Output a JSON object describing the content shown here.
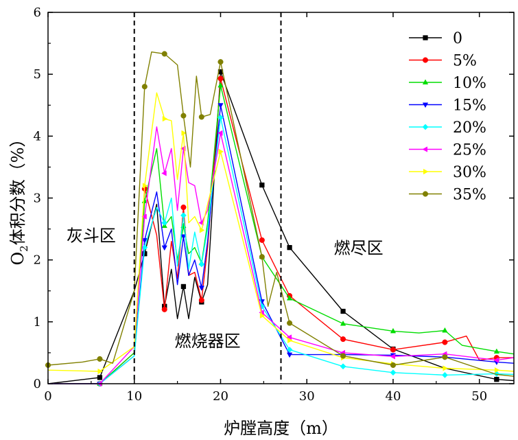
{
  "chart_data": {
    "type": "line",
    "title": "",
    "xlabel": "炉膛高度（m）",
    "ylabel_main": "O",
    "ylabel_sub": "2",
    "ylabel_rest": "体积分数（%）",
    "xlim": [
      0,
      54
    ],
    "ylim": [
      0,
      6
    ],
    "xticks": [
      0,
      10,
      20,
      30,
      40,
      50
    ],
    "yticks": [
      0,
      1,
      2,
      3,
      4,
      5,
      6
    ],
    "legend_position": "top-right",
    "vlines": [
      10,
      27
    ],
    "regions": [
      {
        "label": "灰斗区",
        "x": 5,
        "y": 2.3
      },
      {
        "label": "燃烧器区",
        "x": 18.5,
        "y": 0.6
      },
      {
        "label": "燃尽区",
        "x": 36,
        "y": 2.1
      }
    ],
    "series": [
      {
        "name": "0",
        "color": "#000000",
        "marker": "square",
        "x": [
          0,
          6,
          10,
          11.2,
          12.6,
          13.5,
          14.3,
          15,
          15.7,
          16.3,
          17,
          17.8,
          18.5,
          20,
          24.8,
          28,
          34.2,
          40,
          46,
          52,
          54
        ],
        "y": [
          0.0,
          0.1,
          1.5,
          2.1,
          2.9,
          1.25,
          1.85,
          1.05,
          1.57,
          1.05,
          1.72,
          1.32,
          1.6,
          5.04,
          3.21,
          2.2,
          1.17,
          0.56,
          0.25,
          0.07,
          0.05
        ],
        "markers": [
          1,
          3,
          5,
          8,
          11,
          13,
          14,
          15,
          16,
          17,
          19
        ]
      },
      {
        "name": "5%",
        "color": "#ff0000",
        "marker": "circle",
        "x": [
          0,
          6,
          10,
          11.2,
          12.6,
          13.5,
          14.3,
          15,
          15.7,
          16.3,
          17,
          17.8,
          18.5,
          20,
          24.8,
          28,
          34.2,
          40,
          46,
          48.5,
          50,
          52,
          54
        ],
        "y": [
          0.0,
          0.0,
          0.5,
          3.15,
          2.4,
          1.2,
          2.3,
          1.7,
          2.85,
          1.75,
          1.8,
          1.35,
          2.2,
          4.93,
          2.32,
          1.42,
          0.72,
          0.55,
          0.67,
          0.77,
          0.38,
          0.42,
          0.42
        ],
        "markers": [
          1,
          3,
          5,
          8,
          11,
          13,
          14,
          15,
          16,
          17,
          18,
          21
        ]
      },
      {
        "name": "10%",
        "color": "#00dd00",
        "marker": "triangle-up",
        "x": [
          0,
          6,
          10,
          11.2,
          12.6,
          13.5,
          14.3,
          15,
          15.7,
          16.3,
          17,
          17.8,
          18.5,
          20,
          24.8,
          28,
          34.2,
          40,
          43,
          46,
          48,
          52,
          54
        ],
        "y": [
          0.0,
          0.0,
          0.5,
          2.95,
          3.8,
          2.55,
          2.7,
          2.0,
          2.55,
          2.1,
          2.2,
          1.95,
          2.6,
          4.82,
          2.05,
          1.38,
          0.97,
          0.85,
          0.82,
          0.86,
          0.62,
          0.52,
          0.48
        ],
        "markers": [
          1,
          3,
          5,
          8,
          11,
          13,
          14,
          15,
          16,
          17,
          19,
          21
        ]
      },
      {
        "name": "15%",
        "color": "#0000ff",
        "marker": "triangle-down",
        "x": [
          0,
          6,
          10,
          11.2,
          12.6,
          13.5,
          14.3,
          15,
          15.7,
          16.3,
          17,
          17.8,
          18.5,
          20,
          24.8,
          28,
          34.2,
          40,
          46,
          52,
          54
        ],
        "y": [
          0.0,
          0.0,
          0.45,
          2.32,
          3.1,
          2.2,
          2.5,
          1.6,
          2.38,
          1.75,
          2.0,
          1.55,
          2.3,
          4.5,
          1.33,
          0.47,
          0.47,
          0.46,
          0.43,
          0.35,
          0.33
        ],
        "markers": [
          1,
          3,
          5,
          8,
          11,
          13,
          14,
          15,
          16,
          17,
          18,
          19
        ]
      },
      {
        "name": "20%",
        "color": "#00ffff",
        "marker": "diamond",
        "x": [
          0,
          6,
          10,
          11.2,
          12.6,
          13.5,
          14.3,
          15,
          15.7,
          16.3,
          17,
          17.8,
          18.5,
          20,
          24.8,
          28,
          34.2,
          40,
          46,
          52,
          54
        ],
        "y": [
          0.0,
          0.0,
          0.45,
          2.2,
          2.85,
          2.6,
          3.0,
          1.9,
          2.72,
          1.85,
          2.45,
          1.93,
          2.5,
          4.3,
          1.25,
          0.55,
          0.28,
          0.18,
          0.14,
          0.16,
          0.15
        ],
        "markers": [
          1,
          3,
          5,
          8,
          11,
          13,
          14,
          15,
          16,
          17,
          18,
          19
        ]
      },
      {
        "name": "25%",
        "color": "#ff00ff",
        "marker": "triangle-left",
        "x": [
          0,
          6,
          10,
          11.2,
          12.6,
          13.5,
          14.3,
          15,
          15.7,
          16.3,
          17,
          17.8,
          18.5,
          20,
          24.8,
          28,
          34.2,
          40,
          46,
          52,
          54
        ],
        "y": [
          0.0,
          0.0,
          0.6,
          2.7,
          4.15,
          3.4,
          3.8,
          2.8,
          3.8,
          3.25,
          3.2,
          2.6,
          2.8,
          4.05,
          1.15,
          0.75,
          0.5,
          0.44,
          0.48,
          0.38,
          0.42
        ],
        "markers": [
          1,
          3,
          5,
          8,
          11,
          13,
          14,
          15,
          16,
          17,
          18,
          19
        ]
      },
      {
        "name": "30%",
        "color": "#ffff00",
        "marker": "triangle-right",
        "x": [
          0,
          6,
          10,
          11.2,
          12.6,
          13.5,
          14.3,
          15,
          15.7,
          16.3,
          17,
          17.8,
          18.5,
          20,
          24.8,
          28,
          34.2,
          40,
          46,
          52,
          54
        ],
        "y": [
          0.22,
          0.2,
          0.6,
          3.2,
          4.7,
          4.28,
          4.25,
          3.3,
          4.05,
          2.6,
          2.7,
          2.48,
          2.9,
          3.75,
          1.1,
          0.7,
          0.42,
          0.32,
          0.25,
          0.22,
          0.2
        ],
        "markers": [
          1,
          3,
          5,
          8,
          11,
          13,
          14,
          15,
          16,
          17,
          18,
          19
        ]
      },
      {
        "name": "35%",
        "color": "#808000",
        "marker": "circle",
        "x": [
          0,
          4,
          6,
          7.5,
          10,
          11.2,
          12,
          13.5,
          15,
          15.7,
          16.5,
          17.2,
          17.8,
          18.8,
          20,
          24.8,
          25.5,
          26.5,
          28,
          34.2,
          40,
          46,
          52,
          54
        ],
        "y": [
          0.3,
          0.35,
          0.4,
          0.33,
          1.5,
          4.8,
          5.36,
          5.33,
          5.15,
          4.33,
          3.5,
          4.97,
          4.31,
          4.35,
          5.2,
          2.05,
          1.25,
          1.8,
          0.98,
          0.45,
          0.3,
          0.43,
          0.15,
          0.12
        ],
        "markers": [
          0,
          2,
          5,
          7,
          9,
          12,
          14,
          15,
          18,
          19,
          20,
          21
        ]
      }
    ]
  }
}
